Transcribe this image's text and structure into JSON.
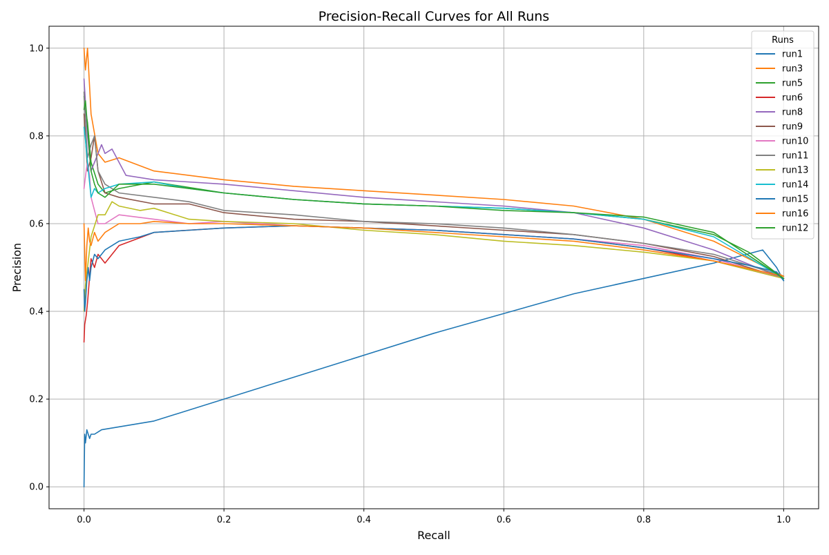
{
  "chart_data": {
    "type": "line",
    "title": "Precision-Recall Curves for All Runs",
    "xlabel": "Recall",
    "ylabel": "Precision",
    "xlim": [
      -0.05,
      1.05
    ],
    "ylim": [
      -0.05,
      1.05
    ],
    "xticks": [
      0.0,
      0.2,
      0.4,
      0.6,
      0.8,
      1.0
    ],
    "xtick_labels": [
      "0.0",
      "0.2",
      "0.4",
      "0.6",
      "0.8",
      "1.0"
    ],
    "yticks": [
      0.0,
      0.2,
      0.4,
      0.6,
      0.8,
      1.0
    ],
    "ytick_labels": [
      "0.0",
      "0.2",
      "0.4",
      "0.6",
      "0.8",
      "1.0"
    ],
    "grid": true,
    "legend": {
      "title": "Runs",
      "position": "top-right"
    },
    "series": [
      {
        "name": "run1",
        "color": "#1f77b4",
        "x": [
          0.0,
          0.001,
          0.002,
          0.004,
          0.006,
          0.008,
          0.01,
          0.015,
          0.02,
          0.025,
          0.1,
          0.3,
          0.5,
          0.7,
          0.9,
          0.97,
          0.99,
          1.0
        ],
        "y": [
          0.0,
          0.12,
          0.1,
          0.13,
          0.12,
          0.11,
          0.12,
          0.12,
          0.125,
          0.13,
          0.15,
          0.25,
          0.35,
          0.44,
          0.51,
          0.54,
          0.5,
          0.47
        ]
      },
      {
        "name": "run3",
        "color": "#ff7f0e",
        "x": [
          0.0,
          0.002,
          0.005,
          0.01,
          0.02,
          0.03,
          0.05,
          0.1,
          0.2,
          0.3,
          0.4,
          0.5,
          0.6,
          0.7,
          0.8,
          0.9,
          0.95,
          1.0
        ],
        "y": [
          1.0,
          0.95,
          1.0,
          0.85,
          0.76,
          0.74,
          0.75,
          0.72,
          0.7,
          0.685,
          0.675,
          0.665,
          0.655,
          0.64,
          0.61,
          0.56,
          0.52,
          0.48
        ]
      },
      {
        "name": "run5",
        "color": "#2ca02c",
        "x": [
          0.0,
          0.002,
          0.005,
          0.01,
          0.02,
          0.03,
          0.05,
          0.1,
          0.2,
          0.3,
          0.4,
          0.5,
          0.6,
          0.7,
          0.8,
          0.9,
          0.95,
          1.0
        ],
        "y": [
          0.89,
          0.86,
          0.83,
          0.74,
          0.69,
          0.67,
          0.68,
          0.695,
          0.67,
          0.655,
          0.645,
          0.64,
          0.635,
          0.625,
          0.61,
          0.575,
          0.535,
          0.475
        ]
      },
      {
        "name": "run6",
        "color": "#d62728",
        "x": [
          0.0,
          0.001,
          0.003,
          0.005,
          0.01,
          0.015,
          0.02,
          0.03,
          0.05,
          0.1,
          0.2,
          0.3,
          0.4,
          0.5,
          0.6,
          0.7,
          0.8,
          0.9,
          1.0
        ],
        "y": [
          0.33,
          0.37,
          0.39,
          0.42,
          0.52,
          0.5,
          0.53,
          0.51,
          0.55,
          0.58,
          0.59,
          0.595,
          0.59,
          0.585,
          0.575,
          0.565,
          0.545,
          0.515,
          0.475
        ]
      },
      {
        "name": "run8",
        "color": "#9467bd",
        "x": [
          0.0,
          0.005,
          0.01,
          0.02,
          0.025,
          0.03,
          0.04,
          0.06,
          0.1,
          0.2,
          0.3,
          0.4,
          0.5,
          0.6,
          0.7,
          0.8,
          0.9,
          1.0
        ],
        "y": [
          0.93,
          0.8,
          0.72,
          0.76,
          0.78,
          0.76,
          0.77,
          0.71,
          0.7,
          0.69,
          0.675,
          0.66,
          0.65,
          0.64,
          0.625,
          0.59,
          0.54,
          0.475
        ]
      },
      {
        "name": "run9",
        "color": "#8c564b",
        "x": [
          0.0,
          0.005,
          0.01,
          0.015,
          0.02,
          0.03,
          0.05,
          0.1,
          0.15,
          0.2,
          0.3,
          0.4,
          0.5,
          0.6,
          0.7,
          0.8,
          0.9,
          1.0
        ],
        "y": [
          0.85,
          0.72,
          0.75,
          0.8,
          0.72,
          0.67,
          0.66,
          0.645,
          0.645,
          0.625,
          0.61,
          0.605,
          0.595,
          0.585,
          0.575,
          0.555,
          0.525,
          0.475
        ]
      },
      {
        "name": "run10",
        "color": "#e377c2",
        "x": [
          0.0,
          0.003,
          0.005,
          0.008,
          0.01,
          0.015,
          0.02,
          0.03,
          0.05,
          0.1,
          0.15,
          0.2,
          0.3,
          0.4,
          0.5,
          0.6,
          0.7,
          0.8,
          0.9,
          1.0
        ],
        "y": [
          0.68,
          0.72,
          0.74,
          0.71,
          0.66,
          0.63,
          0.6,
          0.6,
          0.62,
          0.61,
          0.6,
          0.605,
          0.595,
          0.59,
          0.585,
          0.575,
          0.565,
          0.55,
          0.52,
          0.475
        ]
      },
      {
        "name": "run11",
        "color": "#7f7f7f",
        "x": [
          0.0,
          0.003,
          0.005,
          0.01,
          0.015,
          0.02,
          0.03,
          0.05,
          0.1,
          0.15,
          0.2,
          0.3,
          0.4,
          0.5,
          0.6,
          0.7,
          0.8,
          0.9,
          1.0
        ],
        "y": [
          0.9,
          0.8,
          0.75,
          0.78,
          0.8,
          0.72,
          0.69,
          0.67,
          0.66,
          0.65,
          0.63,
          0.62,
          0.605,
          0.6,
          0.59,
          0.575,
          0.555,
          0.53,
          0.48
        ]
      },
      {
        "name": "run13",
        "color": "#bcbd22",
        "x": [
          0.0,
          0.002,
          0.005,
          0.01,
          0.02,
          0.03,
          0.04,
          0.05,
          0.08,
          0.1,
          0.15,
          0.2,
          0.3,
          0.4,
          0.5,
          0.6,
          0.7,
          0.8,
          0.9,
          1.0
        ],
        "y": [
          0.4,
          0.46,
          0.5,
          0.57,
          0.62,
          0.62,
          0.65,
          0.64,
          0.63,
          0.635,
          0.61,
          0.605,
          0.6,
          0.585,
          0.575,
          0.56,
          0.55,
          0.535,
          0.515,
          0.475
        ]
      },
      {
        "name": "run14",
        "color": "#17becf",
        "x": [
          0.0,
          0.002,
          0.005,
          0.01,
          0.015,
          0.02,
          0.03,
          0.05,
          0.1,
          0.15,
          0.2,
          0.3,
          0.4,
          0.5,
          0.6,
          0.7,
          0.8,
          0.9,
          1.0
        ],
        "y": [
          0.82,
          0.79,
          0.74,
          0.66,
          0.68,
          0.67,
          0.68,
          0.69,
          0.695,
          0.68,
          0.67,
          0.655,
          0.645,
          0.64,
          0.635,
          0.625,
          0.61,
          0.57,
          0.475
        ]
      },
      {
        "name": "run15",
        "color": "#1f77b4",
        "x": [
          0.0,
          0.001,
          0.002,
          0.004,
          0.006,
          0.008,
          0.01,
          0.015,
          0.02,
          0.03,
          0.05,
          0.08,
          0.1,
          0.15,
          0.2,
          0.3,
          0.4,
          0.5,
          0.6,
          0.7,
          0.8,
          0.9,
          0.95,
          0.99,
          1.0
        ],
        "y": [
          0.45,
          0.4,
          0.42,
          0.47,
          0.5,
          0.47,
          0.5,
          0.53,
          0.52,
          0.54,
          0.56,
          0.57,
          0.58,
          0.585,
          0.59,
          0.595,
          0.59,
          0.585,
          0.575,
          0.565,
          0.545,
          0.52,
          0.505,
          0.49,
          0.47
        ]
      },
      {
        "name": "run16",
        "color": "#ff7f0e",
        "x": [
          0.0,
          0.002,
          0.004,
          0.006,
          0.008,
          0.01,
          0.015,
          0.02,
          0.03,
          0.05,
          0.08,
          0.1,
          0.15,
          0.2,
          0.3,
          0.4,
          0.5,
          0.6,
          0.7,
          0.8,
          0.9,
          1.0
        ],
        "y": [
          0.6,
          0.47,
          0.55,
          0.59,
          0.56,
          0.55,
          0.58,
          0.56,
          0.58,
          0.6,
          0.6,
          0.605,
          0.6,
          0.6,
          0.595,
          0.59,
          0.58,
          0.57,
          0.56,
          0.54,
          0.515,
          0.48
        ]
      },
      {
        "name": "run12",
        "color": "#2ca02c",
        "x": [
          0.0,
          0.002,
          0.004,
          0.006,
          0.01,
          0.015,
          0.02,
          0.03,
          0.05,
          0.1,
          0.15,
          0.2,
          0.3,
          0.4,
          0.5,
          0.6,
          0.7,
          0.8,
          0.9,
          1.0
        ],
        "y": [
          0.86,
          0.88,
          0.84,
          0.8,
          0.72,
          0.69,
          0.67,
          0.66,
          0.69,
          0.69,
          0.68,
          0.67,
          0.655,
          0.645,
          0.64,
          0.63,
          0.625,
          0.615,
          0.58,
          0.475
        ]
      }
    ]
  }
}
